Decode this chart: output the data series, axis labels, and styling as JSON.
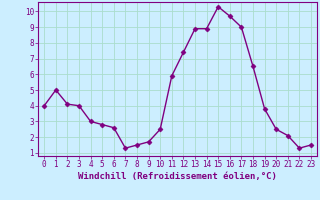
{
  "x": [
    0,
    1,
    2,
    3,
    4,
    5,
    6,
    7,
    8,
    9,
    10,
    11,
    12,
    13,
    14,
    15,
    16,
    17,
    18,
    19,
    20,
    21,
    22,
    23
  ],
  "y": [
    4.0,
    5.0,
    4.1,
    4.0,
    3.0,
    2.8,
    2.6,
    1.3,
    1.5,
    1.7,
    2.5,
    5.9,
    7.4,
    8.9,
    8.9,
    10.3,
    9.7,
    9.0,
    6.5,
    3.8,
    2.5,
    2.1,
    1.3,
    1.5
  ],
  "line_color": "#800080",
  "marker": "D",
  "marker_size": 2.5,
  "bg_color": "#cceeff",
  "grid_color": "#aaddcc",
  "xlabel": "Windchill (Refroidissement éolien,°C)",
  "xlim": [
    -0.5,
    23.5
  ],
  "ylim": [
    0.8,
    10.6
  ],
  "yticks": [
    1,
    2,
    3,
    4,
    5,
    6,
    7,
    8,
    9,
    10
  ],
  "xticks": [
    0,
    1,
    2,
    3,
    4,
    5,
    6,
    7,
    8,
    9,
    10,
    11,
    12,
    13,
    14,
    15,
    16,
    17,
    18,
    19,
    20,
    21,
    22,
    23
  ],
  "tick_label_fontsize": 5.5,
  "xlabel_fontsize": 6.5,
  "linewidth": 1.0
}
